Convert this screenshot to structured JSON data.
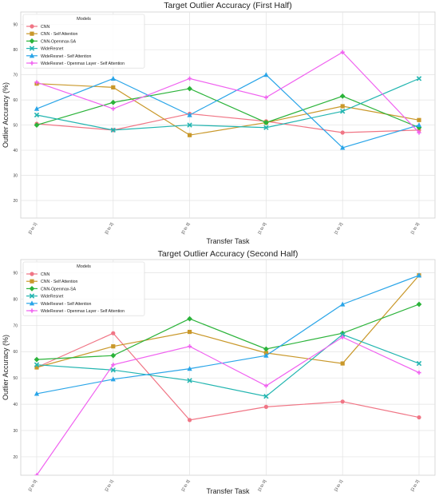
{
  "chart_data": [
    {
      "type": "line",
      "title": "Target Outlier Accuracy (First Half)",
      "xlabel": "Transfer Task",
      "ylabel": "Outlier Accuracy (%)",
      "categories": [
        "[0 to 1]",
        "[0 to 2]",
        "[0 to 3]",
        "[1 to 0]",
        "[1 to 2]",
        "[1 to 3]"
      ],
      "ylim": [
        13,
        95
      ],
      "yticks": [
        20,
        30,
        40,
        50,
        60,
        70,
        80,
        90
      ],
      "legend_title": "Models",
      "legend_position": "top-left",
      "grid": true,
      "series": [
        {
          "name": "CNN",
          "color": "#f07585",
          "marker": "circle",
          "values": [
            50.5,
            48,
            54.5,
            51.5,
            47,
            48
          ]
        },
        {
          "name": "CNN - Self Attention",
          "color": "#c9982a",
          "marker": "square",
          "values": [
            66.5,
            65,
            46,
            51,
            57.5,
            52
          ]
        },
        {
          "name": "CNN-Openmax-SA",
          "color": "#2bb33a",
          "marker": "diamond",
          "values": [
            50,
            59,
            64.5,
            51,
            61.5,
            49
          ]
        },
        {
          "name": "WideResnet",
          "color": "#22b5b0",
          "marker": "x",
          "values": [
            54,
            48,
            50,
            49,
            55.5,
            68.5
          ]
        },
        {
          "name": "WideResnet - Self Attention",
          "color": "#2aa5e8",
          "marker": "triangle",
          "values": [
            56.5,
            68.5,
            54,
            70,
            41,
            50
          ]
        },
        {
          "name": "WideResnet - Openmax Layer - Self Attention",
          "color": "#f062f0",
          "marker": "plus",
          "values": [
            67,
            56.5,
            68.5,
            61,
            79,
            47
          ]
        }
      ]
    },
    {
      "type": "line",
      "title": "Target Outlier Accuracy (Second Half)",
      "xlabel": "Transfer Task",
      "ylabel": "Outlier Accuracy (%)",
      "categories": [
        "[2 to 0]",
        "[2 to 1]",
        "[2 to 3]",
        "[3 to 0]",
        "[3 to 1]",
        "[3 to 2]"
      ],
      "ylim": [
        13,
        95
      ],
      "yticks": [
        20,
        30,
        40,
        50,
        60,
        70,
        80,
        90
      ],
      "legend_title": "Models",
      "legend_position": "top-left",
      "grid": true,
      "series": [
        {
          "name": "CNN",
          "color": "#f07585",
          "marker": "circle",
          "values": [
            54,
            67,
            34,
            39,
            41,
            35
          ]
        },
        {
          "name": "CNN - Self Attention",
          "color": "#c9982a",
          "marker": "square",
          "values": [
            54,
            62,
            67.5,
            59.5,
            55.5,
            89
          ]
        },
        {
          "name": "CNN-Openmax-SA",
          "color": "#2bb33a",
          "marker": "diamond",
          "values": [
            57,
            58.5,
            72.5,
            61,
            67,
            78
          ]
        },
        {
          "name": "WideResnet",
          "color": "#22b5b0",
          "marker": "x",
          "values": [
            55,
            53,
            49,
            43,
            66.5,
            55.5
          ]
        },
        {
          "name": "WideResnet - Self Attention",
          "color": "#2aa5e8",
          "marker": "triangle",
          "values": [
            44,
            49.5,
            53.5,
            58.5,
            78,
            89
          ]
        },
        {
          "name": "WideResnet - Openmax Layer - Self Attention",
          "color": "#f062f0",
          "marker": "plus",
          "values": [
            13,
            55,
            62,
            47,
            65.5,
            52
          ]
        }
      ]
    }
  ]
}
